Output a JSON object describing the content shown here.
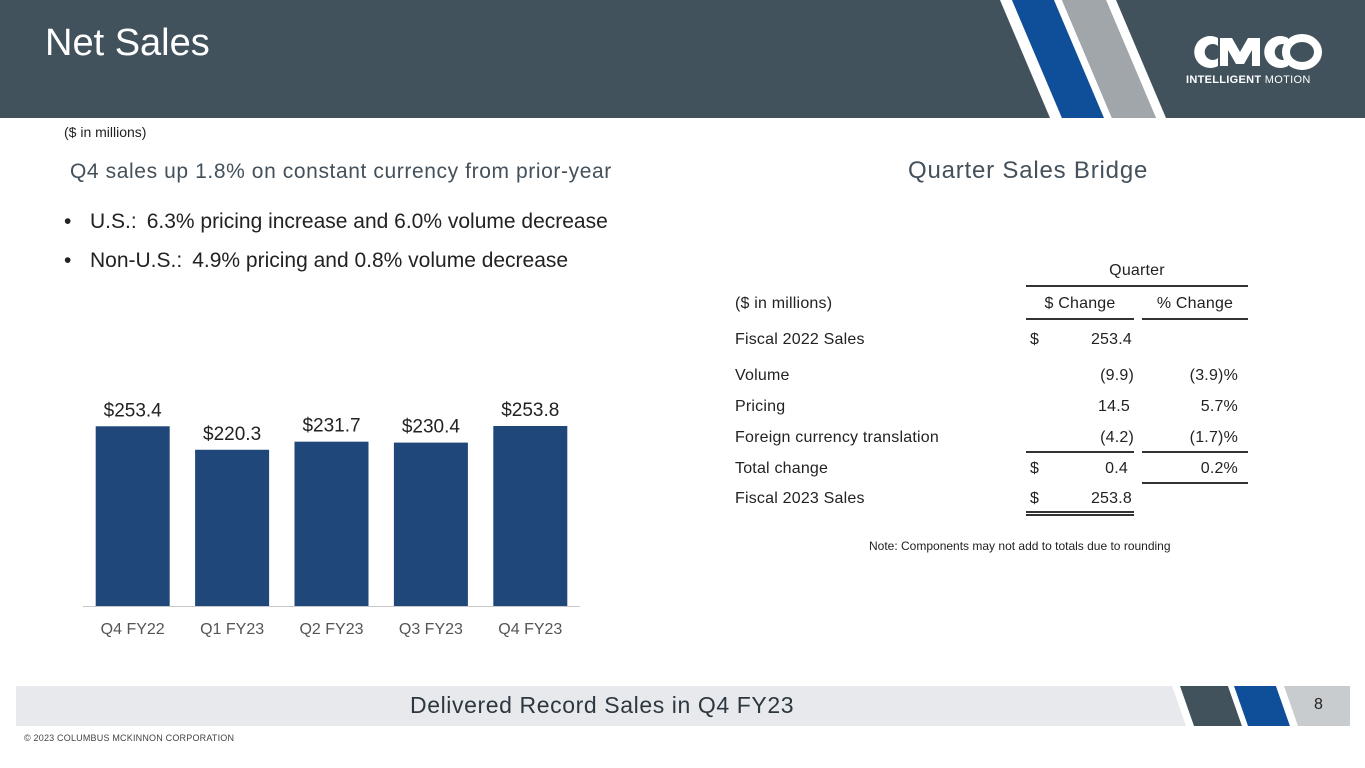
{
  "header": {
    "title": "Net Sales",
    "logo_sub_bold": "INTELLIGENT",
    "logo_sub_rest": " MOTION",
    "colors": {
      "bg": "#42525d",
      "stripe_blue": "#0f4f99",
      "stripe_gray": "#a0a6aa"
    }
  },
  "units_label": "($ in millions)",
  "left_heading": "Q4 sales up 1.8% on constant currency from prior-year",
  "bullets": [
    {
      "label": "U.S.:",
      "text": "6.3% pricing increase and 6.0% volume decrease"
    },
    {
      "label": "Non-U.S.:",
      "text": "4.9% pricing and 0.8% volume decrease"
    }
  ],
  "chart_data": {
    "type": "bar",
    "categories": [
      "Q4 FY22",
      "Q1 FY23",
      "Q2 FY23",
      "Q3 FY23",
      "Q4 FY23"
    ],
    "values": [
      253.4,
      220.3,
      231.7,
      230.4,
      253.8
    ],
    "data_labels": [
      "$253.4",
      "$220.3",
      "$231.7",
      "$230.4",
      "$253.8"
    ],
    "title": "",
    "xlabel": "",
    "ylabel": "",
    "ylim": [
      0,
      253.8
    ],
    "grid": false,
    "legend": "none",
    "bar_color": "#1f477a"
  },
  "right_heading": "Quarter Sales Bridge",
  "bridge": {
    "group_header": "Quarter",
    "units": "($ in millions)",
    "col_dollar": "$ Change",
    "col_pct": "% Change",
    "rows": [
      {
        "label": "Fiscal 2022 Sales",
        "cur": "$",
        "amount": "253.4",
        "pct": ""
      },
      {
        "label": "Volume",
        "cur": "",
        "amount": "(9.9)",
        "pct": "(3.9)%"
      },
      {
        "label": "Pricing",
        "cur": "",
        "amount": "14.5",
        "pct": "5.7%"
      },
      {
        "label": "Foreign currency translation",
        "cur": "",
        "amount": "(4.2)",
        "pct": "(1.7)%"
      },
      {
        "label": "Total change",
        "cur": "$",
        "amount": "0.4",
        "pct": "0.2%"
      },
      {
        "label": "Fiscal 2023 Sales",
        "cur": "$",
        "amount": "253.8",
        "pct": ""
      }
    ],
    "note": "Note: Components may not add to totals due to rounding"
  },
  "footer": {
    "text": "Delivered Record Sales in Q4 FY23",
    "page": "8",
    "copyright": "© 2023 COLUMBUS MCKINNON CORPORATION",
    "colors": {
      "dark": "#42525d",
      "blue": "#0f4f99",
      "gray": "#a0a6aa"
    }
  }
}
